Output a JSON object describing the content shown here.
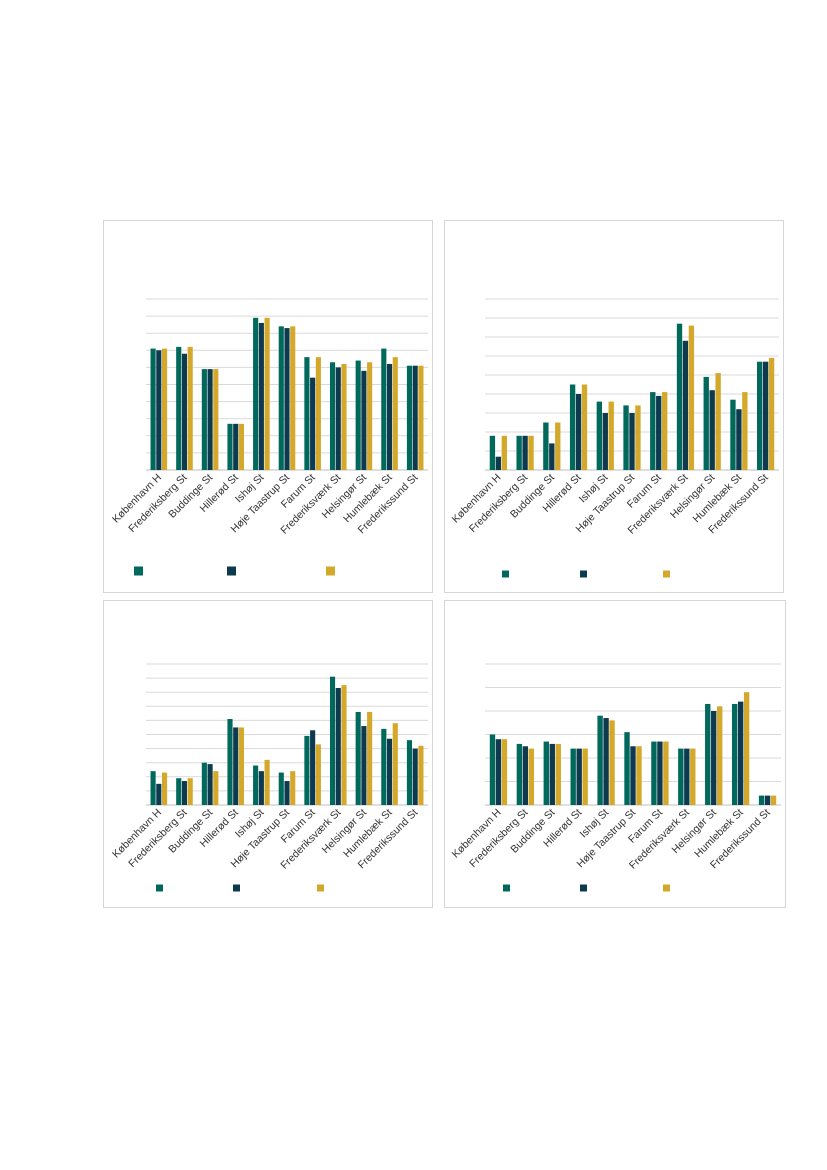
{
  "colors": {
    "series1": "#00695c",
    "series2": "#0d3a4f",
    "series3": "#d4a82a",
    "grid": "#d9d9d9",
    "axis": "#bfbfbf"
  },
  "chart_data": [
    {
      "type": "bar",
      "categories": [
        "København H",
        "Frederiksberg St",
        "Buddinge St",
        "Hillerød St",
        "Ishøj St",
        "Høje Taastrup St",
        "Farum St",
        "Frederiksværk St",
        "Helsingør St",
        "Humlebæk St",
        "Frederikssund St"
      ],
      "series": [
        {
          "values": [
            71,
            72,
            59,
            27,
            89,
            84,
            66,
            63,
            64,
            71,
            61
          ]
        },
        {
          "values": [
            70,
            68,
            59,
            27,
            86,
            83,
            54,
            60,
            58,
            62,
            61
          ]
        },
        {
          "values": [
            71,
            72,
            59,
            27,
            89,
            84,
            66,
            62,
            63,
            66,
            61
          ]
        }
      ],
      "ylim": [
        0,
        100
      ],
      "grid": true,
      "legend": "bottom"
    },
    {
      "type": "bar",
      "categories": [
        "København H",
        "Frederiksberg St",
        "Buddinge St",
        "Hillerød St",
        "Ishøj St",
        "Høje Taastrup St",
        "Farum St",
        "Frederiksværk St",
        "Helsingør St",
        "Humlebæk St",
        "Frederikssund St"
      ],
      "series": [
        {
          "values": [
            18,
            18,
            25,
            45,
            36,
            34,
            41,
            77,
            49,
            37,
            57
          ]
        },
        {
          "values": [
            7,
            18,
            14,
            40,
            30,
            30,
            39,
            68,
            42,
            32,
            57
          ]
        },
        {
          "values": [
            18,
            18,
            25,
            45,
            36,
            34,
            41,
            76,
            51,
            41,
            59
          ]
        }
      ],
      "ylim": [
        0,
        90
      ],
      "grid": true,
      "legend": "bottom"
    },
    {
      "type": "bar",
      "categories": [
        "København H",
        "Frederiksberg St",
        "Buddinge St",
        "Hillerød St",
        "Ishøj St",
        "Høje Taastrup St",
        "Farum St",
        "Frederiksværk St",
        "Helsingør St",
        "Humlebæk St",
        "Frederikssund St"
      ],
      "series": [
        {
          "values": [
            24,
            19,
            30,
            61,
            28,
            23,
            49,
            91,
            66,
            54,
            46
          ]
        },
        {
          "values": [
            15,
            17,
            29,
            55,
            24,
            17,
            53,
            83,
            56,
            47,
            40
          ]
        },
        {
          "values": [
            23,
            19,
            24,
            55,
            32,
            24,
            43,
            85,
            66,
            58,
            42
          ]
        }
      ],
      "ylim": [
        0,
        100
      ],
      "grid": true,
      "legend": "bottom"
    },
    {
      "type": "bar",
      "categories": [
        "København H",
        "Frederiksberg St",
        "Buddinge St",
        "Hillerød St",
        "Ishøj St",
        "Høje Taastrup St",
        "Farum St",
        "Frederiksværk St",
        "Helsingør St",
        "Humlebæk St",
        "Frederikssund St"
      ],
      "series": [
        {
          "values": [
            30,
            26,
            27,
            24,
            38,
            31,
            27,
            24,
            43,
            43,
            4
          ]
        },
        {
          "values": [
            28,
            25,
            26,
            24,
            37,
            25,
            27,
            24,
            40,
            44,
            4
          ]
        },
        {
          "values": [
            28,
            24,
            26,
            24,
            36,
            25,
            27,
            24,
            42,
            48,
            4
          ]
        }
      ],
      "ylim": [
        0,
        60
      ],
      "grid": true,
      "legend": "bottom"
    }
  ]
}
